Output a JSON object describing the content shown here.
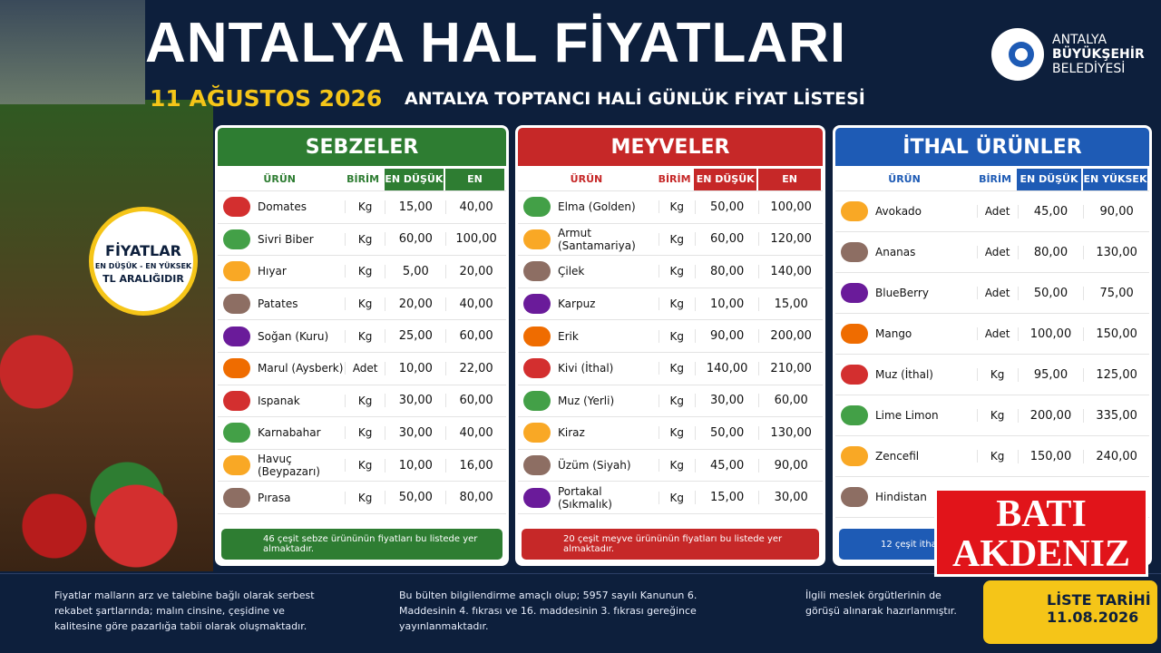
{
  "header": {
    "title": "ANTALYA HAL FİYATLARI",
    "date": "11 AĞUSTOS 2026",
    "subtitle": "ANTALYA TOPTANCI HALİ GÜNLÜK FİYAT LİSTESİ",
    "logo": [
      "ANTALYA",
      "BÜYÜKŞEHİR",
      "BELEDİYESİ"
    ]
  },
  "badge": [
    "FİYATLAR",
    "EN DÜŞÜK - EN YÜKSEK",
    "TL ARALIĞIDIR"
  ],
  "tables": [
    {
      "title": "SEBZELER",
      "color": "#2e7d32",
      "columns": [
        "ÜRÜN",
        "BİRİM",
        "EN DÜŞÜK",
        "EN YÜKSEK"
      ],
      "rows": [
        [
          "Domates",
          "Kg",
          "15,00",
          "40,00"
        ],
        [
          "Sivri Biber",
          "Kg",
          "60,00",
          "100,00"
        ],
        [
          "Hıyar",
          "Kg",
          "5,00",
          "20,00"
        ],
        [
          "Patates",
          "Kg",
          "20,00",
          "40,00"
        ],
        [
          "Soğan (Kuru)",
          "Kg",
          "25,00",
          "60,00"
        ],
        [
          "Marul (Aysberk)",
          "Adet",
          "10,00",
          "22,00"
        ],
        [
          "Ispanak",
          "Kg",
          "30,00",
          "60,00"
        ],
        [
          "Karnabahar",
          "Kg",
          "30,00",
          "40,00"
        ],
        [
          "Havuç (Beypazarı)",
          "Kg",
          "10,00",
          "16,00"
        ],
        [
          "Pırasa",
          "Kg",
          "50,00",
          "80,00"
        ]
      ],
      "footer": "46 çeşit sebze ürününün fiyatları bu listede yer almaktadır."
    },
    {
      "title": "MEYVELER",
      "color": "#c62828",
      "columns": [
        "ÜRÜN",
        "BİRİM",
        "EN DÜŞÜK",
        "EN YÜKSEK"
      ],
      "rows": [
        [
          "Elma (Golden)",
          "Kg",
          "50,00",
          "100,00"
        ],
        [
          "Armut (Santamariya)",
          "Kg",
          "60,00",
          "120,00"
        ],
        [
          "Çilek",
          "Kg",
          "80,00",
          "140,00"
        ],
        [
          "Karpuz",
          "Kg",
          "10,00",
          "15,00"
        ],
        [
          "Erik",
          "Kg",
          "90,00",
          "200,00"
        ],
        [
          "Kivi (İthal)",
          "Kg",
          "140,00",
          "210,00"
        ],
        [
          "Muz (Yerli)",
          "Kg",
          "30,00",
          "60,00"
        ],
        [
          "Kiraz",
          "Kg",
          "50,00",
          "130,00"
        ],
        [
          "Üzüm (Siyah)",
          "Kg",
          "45,00",
          "90,00"
        ],
        [
          "Portakal (Sıkmalık)",
          "Kg",
          "15,00",
          "30,00"
        ]
      ],
      "footer": "20 çeşit meyve ürününün fiyatları bu listede yer almaktadır."
    },
    {
      "title": "İTHAL ÜRÜNLER",
      "color": "#1e5bb5",
      "columns": [
        "ÜRÜN",
        "BİRİM",
        "EN DÜŞÜK",
        "EN YÜKSEK"
      ],
      "rows": [
        [
          "Avokado",
          "Adet",
          "45,00",
          "90,00"
        ],
        [
          "Ananas",
          "Adet",
          "80,00",
          "130,00"
        ],
        [
          "BlueBerry",
          "Adet",
          "50,00",
          "75,00"
        ],
        [
          "Mango",
          "Adet",
          "100,00",
          "150,00"
        ],
        [
          "Muz (İthal)",
          "Kg",
          "95,00",
          "125,00"
        ],
        [
          "Lime Limon",
          "Kg",
          "200,00",
          "335,00"
        ],
        [
          "Zencefil",
          "Kg",
          "150,00",
          "240,00"
        ],
        [
          "Hindistan"
        ]
      ],
      "footer": "12 çeşit itha"
    }
  ],
  "notes": [
    "Fiyatlar malların arz ve talebine bağlı olarak serbest rekabet şartlarında; malın cinsine, çeşidine ve kalitesine göre pazarlığa tabii olarak oluşmaktadır.",
    "Bu bülten bilgilendirme amaçlı olup; 5957 sayılı Kanunun 6. Maddesinin 4. fıkrası ve 16. maddesinin 3. fıkrası gereğince yayınlanmaktadır.",
    "İlgili meslek örgütlerinin de görüşü alınarak hazırlanmıştır."
  ],
  "list_date": {
    "label": "LİSTE TARİHİ",
    "date": "11.08.2026"
  },
  "watermark": [
    "BATI",
    "AKDENIZ"
  ]
}
